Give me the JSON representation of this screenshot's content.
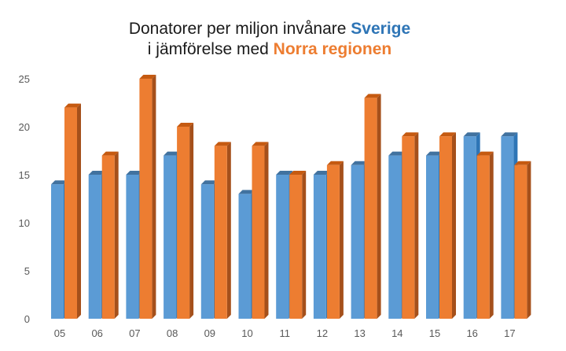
{
  "chart_data": {
    "type": "bar",
    "title_line1_prefix": "Donatorer per miljon invånare ",
    "title_line1_highlight": "Sverige",
    "title_line2_prefix": "i jämförelse med ",
    "title_line2_highlight": "Norra regionen",
    "categories": [
      "05",
      "06",
      "07",
      "08",
      "09",
      "10",
      "11",
      "12",
      "13",
      "14",
      "15",
      "16",
      "17"
    ],
    "series": [
      {
        "values": [
          14,
          15,
          15,
          17,
          14,
          13,
          15,
          15,
          16,
          17,
          17,
          19,
          19
        ],
        "color": "#5b9bd5",
        "side_color": "#2e75b6",
        "top_color": "#41729f"
      },
      {
        "values": [
          22,
          17,
          25,
          20,
          18,
          18,
          15,
          16,
          23,
          19,
          19,
          17,
          16
        ],
        "color": "#ed7d31",
        "side_color": "#a5501b",
        "top_color": "#c55a11"
      }
    ],
    "ylim": [
      0,
      25
    ],
    "yticks": [
      "0",
      "5",
      "10",
      "15",
      "20",
      "25"
    ],
    "title_color": "#1a1a1a",
    "highlight_colors": [
      "#2e75b6",
      "#ed7d31"
    ],
    "grid": false,
    "legend": "none"
  }
}
